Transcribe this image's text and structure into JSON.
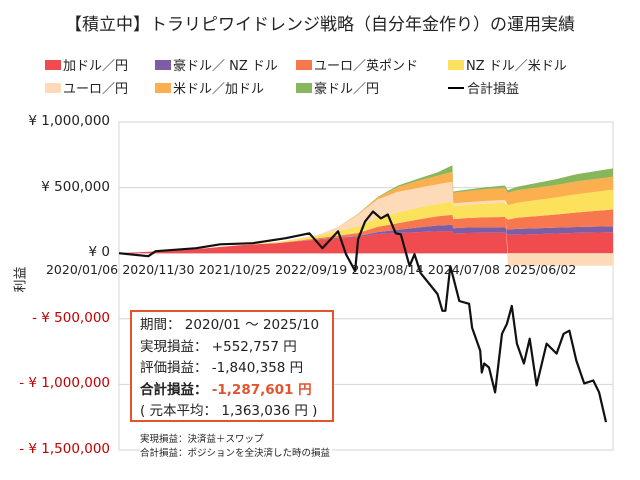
{
  "title": "【積立中】トラリピワイドレンジ戦略（自分年金作り）の運用実績",
  "legend": [
    {
      "label": "加ドル／円",
      "color": "#f04b4f"
    },
    {
      "label": "豪ドル／ NZ ドル",
      "color": "#7d5ea6"
    },
    {
      "label": "ユーロ／英ポンド",
      "color": "#f7784f"
    },
    {
      "label": "NZ ドル／米ドル",
      "color": "#fbe15c"
    },
    {
      "label": "ユーロ／円",
      "color": "#fddab8"
    },
    {
      "label": "米ドル／加ドル",
      "color": "#fbaf4e"
    },
    {
      "label": "豪ドル／円",
      "color": "#88b65c"
    },
    {
      "label": "合計損益",
      "color": "#000000"
    }
  ],
  "chart_data": {
    "type": "area",
    "ylabel": "利益",
    "ylim": [
      -1500000,
      1000000
    ],
    "xlim": [
      "2020-01-06",
      "2025-11-03"
    ],
    "grid": true,
    "legend_position": "top",
    "yticks": [
      {
        "value": 1000000,
        "label": "¥ 1,000,000"
      },
      {
        "value": 500000,
        "label": "¥ 500,000"
      },
      {
        "value": 0,
        "label": "¥ 0"
      },
      {
        "value": -500000,
        "label": "- ¥ 500,000"
      },
      {
        "value": -1000000,
        "label": "- ¥ 1,000,000"
      },
      {
        "value": -1500000,
        "label": "- ¥ 1,500,000"
      }
    ],
    "xticks": [
      "2020/01/06",
      "2020/11/30",
      "2021/10/25",
      "2022/09/19",
      "2023/08/14",
      "2024/07/08",
      "2025/06/02"
    ],
    "stack_dates": [
      "2020-01-06",
      "2020-06-29",
      "2020-12-17",
      "2021-06-06",
      "2021-11-24",
      "2022-05-14",
      "2022-08-07",
      "2022-11-01",
      "2023-01-25",
      "2023-04-21",
      "2023-07-15",
      "2023-10-09",
      "2023-12-12",
      "2023-12-16",
      "2024-02-14",
      "2024-05-09",
      "2024-07-25",
      "2024-08-07",
      "2024-09-14",
      "2025-03-04",
      "2025-05-29",
      "2025-11-03"
    ],
    "series": [
      {
        "name": "加ドル／円",
        "values": [
          0,
          15000,
          33000,
          61000,
          78000,
          104000,
          113000,
          121000,
          146000,
          154000,
          161000,
          166000,
          166000,
          150000,
          154000,
          156000,
          156000,
          140000,
          140000,
          150000,
          155000,
          160000
        ]
      },
      {
        "name": "豪ドル／ NZ ドル",
        "values": [
          0,
          0,
          0,
          0,
          0,
          3000,
          5000,
          8000,
          15000,
          25000,
          35000,
          45000,
          50000,
          40000,
          42000,
          42000,
          40000,
          40000,
          45000,
          45000,
          45000,
          45000
        ]
      },
      {
        "name": "ユーロ／英ポンド",
        "values": [
          0,
          0,
          0,
          0,
          0,
          8000,
          15000,
          25000,
          40000,
          50000,
          60000,
          70000,
          76000,
          70000,
          72000,
          76000,
          80000,
          75000,
          85000,
          100000,
          110000,
          128000
        ]
      },
      {
        "name": "NZ ドル／米ドル",
        "values": [
          0,
          0,
          0,
          0,
          7000,
          20000,
          35000,
          50000,
          70000,
          80000,
          90000,
          95000,
          101000,
          100000,
          100000,
          105000,
          110000,
          110000,
          115000,
          130000,
          140000,
          152000
        ]
      },
      {
        "name": "ユーロ／円",
        "values": [
          0,
          0,
          0,
          0,
          0,
          5000,
          30000,
          90000,
          140000,
          160000,
          150000,
          150000,
          152000,
          20000,
          20000,
          20000,
          20000,
          -95000,
          -95000,
          -95000,
          -95000,
          -95000
        ]
      },
      {
        "name": "米ドル／加ドル",
        "values": [
          0,
          0,
          0,
          0,
          0,
          0,
          2000,
          5000,
          15000,
          35000,
          55000,
          65000,
          76000,
          80000,
          85000,
          90000,
          90000,
          95000,
          95000,
          95000,
          97000,
          98000
        ]
      },
      {
        "name": "豪ドル／円",
        "values": [
          0,
          0,
          0,
          0,
          0,
          0,
          0,
          1000,
          4000,
          11000,
          15000,
          25000,
          50000,
          10000,
          12000,
          15000,
          20000,
          20000,
          25000,
          45000,
          55000,
          63000
        ]
      }
    ],
    "total": {
      "name": "合計損益",
      "points": [
        [
          "2020-01-06",
          0
        ],
        [
          "2020-05-11",
          -23000
        ],
        [
          "2020-06-12",
          15000
        ],
        [
          "2020-12-04",
          38000
        ],
        [
          "2021-03-17",
          68000
        ],
        [
          "2021-08-05",
          76000
        ],
        [
          "2021-12-24",
          114000
        ],
        [
          "2022-04-05",
          152000
        ],
        [
          "2022-05-31",
          38000
        ],
        [
          "2022-08-07",
          167000
        ],
        [
          "2022-09-10",
          -8000
        ],
        [
          "2022-10-19",
          -136000
        ],
        [
          "2022-11-01",
          106000
        ],
        [
          "2022-12-01",
          242000
        ],
        [
          "2023-01-04",
          318000
        ],
        [
          "2023-02-07",
          265000
        ],
        [
          "2023-03-09",
          295000
        ],
        [
          "2023-04-12",
          152000
        ],
        [
          "2023-05-04",
          144000
        ],
        [
          "2023-06-11",
          -98000
        ],
        [
          "2023-07-02",
          -8000
        ],
        [
          "2023-07-28",
          -152000
        ],
        [
          "2023-10-09",
          -311000
        ],
        [
          "2023-10-30",
          -439000
        ],
        [
          "2023-11-12",
          -439000
        ],
        [
          "2023-12-03",
          -98000
        ],
        [
          "2023-12-20",
          -212000
        ],
        [
          "2024-01-11",
          -364000
        ],
        [
          "2024-02-22",
          -386000
        ],
        [
          "2024-03-06",
          -568000
        ],
        [
          "2024-04-10",
          -742000
        ],
        [
          "2024-04-17",
          -909000
        ],
        [
          "2024-04-27",
          -841000
        ],
        [
          "2024-05-18",
          -871000
        ],
        [
          "2024-06-13",
          -1061000
        ],
        [
          "2024-07-13",
          -614000
        ],
        [
          "2024-08-03",
          -538000
        ],
        [
          "2024-08-24",
          -402000
        ],
        [
          "2024-09-15",
          -689000
        ],
        [
          "2024-10-15",
          -841000
        ],
        [
          "2024-11-09",
          -652000
        ],
        [
          "2024-12-09",
          -1008000
        ],
        [
          "2025-01-21",
          -689000
        ],
        [
          "2025-03-05",
          -765000
        ],
        [
          "2025-04-04",
          -614000
        ],
        [
          "2025-04-29",
          -591000
        ],
        [
          "2025-05-29",
          -818000
        ],
        [
          "2025-07-02",
          -992000
        ],
        [
          "2025-08-10",
          -970000
        ],
        [
          "2025-09-04",
          -1061000
        ],
        [
          "2025-10-04",
          -1287601
        ]
      ]
    }
  },
  "summary": {
    "period_label": "期間：",
    "period_value": "2020/01 ～ 2025/10",
    "realized_label": "実現損益：",
    "realized_value": "+552,757 円",
    "unrealized_label": "評価損益：",
    "unrealized_value": "-1,840,358 円",
    "total_label": "合計損益：",
    "total_value": "-1,287,601 円",
    "principal_text": "( 元本平均： 1,363,036 円 )"
  },
  "notes": [
    "実現損益：決済益＋スワップ",
    "合計損益：ポジションを全決済した時の損益"
  ]
}
